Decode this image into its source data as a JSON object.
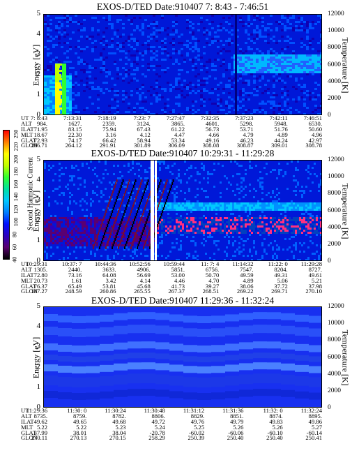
{
  "chart_data": [
    {
      "type": "heatmap",
      "title": "EXOS-D/TED   Date:910407   7: 8:43 - 7:46:51",
      "ylabel": "Energy [eV]",
      "y2label": "Temperature [K]",
      "ylim": [
        0,
        5
      ],
      "y2lim": [
        0,
        12000
      ],
      "yticks": [
        "0",
        "1",
        "2",
        "3",
        "4",
        "5"
      ],
      "y2ticks": [
        "0",
        "2000",
        "4000",
        "6000",
        "8000",
        "10000",
        "12000"
      ],
      "table": {
        "labels": [
          "UT",
          "ALT",
          "ILAT",
          "MLT",
          "GLAT",
          "GLON"
        ],
        "columns": [
          [
            "7: 8:43",
            "984.",
            "71.95",
            "18.67",
            "72.93",
            "206.71"
          ],
          [
            "7:13:31",
            "1627.",
            "83.15",
            "22.30",
            "74.17",
            "264.12"
          ],
          [
            "7:18:19",
            "2359.",
            "75.94",
            "3.16",
            "66.42",
            "291.91"
          ],
          [
            "7:23: 7",
            "3124.",
            "67.43",
            "4.12",
            "58.94",
            "301.89"
          ],
          [
            "7:27:47",
            "3865.",
            "61.22",
            "4.47",
            "53.34",
            "306.09"
          ],
          [
            "7:32:35",
            "4601.",
            "56.73",
            "4.66",
            "49.16",
            "308.08"
          ],
          [
            "7:37:23",
            "5298.",
            "53.71",
            "4.79",
            "46.23",
            "308.87"
          ],
          [
            "7:42:11",
            "5948.",
            "51.76",
            "4.89",
            "44.24",
            "309.01"
          ],
          [
            "7:46:51",
            "6530.",
            "50.60",
            "4.96",
            "42.97",
            "308.78"
          ]
        ]
      }
    },
    {
      "type": "heatmap",
      "title": "EXOS-D/TED   Date:910407   10:29:31 - 11:29:28",
      "ylabel": "Energy [eV]",
      "y2label": "Temperature [K]",
      "ylim": [
        0,
        5
      ],
      "y2lim": [
        0,
        12000
      ],
      "yticks": [
        "0",
        "1",
        "2",
        "3",
        "4",
        "5"
      ],
      "y2ticks": [
        "0",
        "2000",
        "4000",
        "6000",
        "8000",
        "10000",
        "12000"
      ],
      "table": {
        "labels": [
          "UT",
          "ALT",
          "ILAT",
          "MLT",
          "GLAT",
          "GLON"
        ],
        "columns": [
          [
            "10:29:31",
            "1305.",
            "72.80",
            "20.73",
            "76.37",
            "187.27"
          ],
          [
            "10:37: 7",
            "2440.",
            "73.16",
            "1.61",
            "65.49",
            "248.59"
          ],
          [
            "10:44:36",
            "3633.",
            "64.08",
            "3.42",
            "53.81",
            "260.86"
          ],
          [
            "10:52:56",
            "4906.",
            "56.69",
            "4.14",
            "45.68",
            "265.55"
          ],
          [
            "10:59:44",
            "5851.",
            "53.00",
            "4.46",
            "41.73",
            "267.37"
          ],
          [
            "11: 7: 4",
            "6756.",
            "50.70",
            "4.70",
            "39.27",
            "268.51"
          ],
          [
            "11:14:32",
            "7547.",
            "49.59",
            "4.89",
            "38.06",
            "269.22"
          ],
          [
            "11:22: 0",
            "8204.",
            "49.31",
            "5.06",
            "37.72",
            "269.71"
          ],
          [
            "11:29:28",
            "8727.",
            "49.61",
            "5.21",
            "37.98",
            "270.10"
          ]
        ]
      }
    },
    {
      "type": "heatmap",
      "title": "EXOS-D/TED   Date:910407   11:29:36 - 11:32:24",
      "ylabel": "Energy [eV]",
      "y2label": "Temperature [K]",
      "ylim": [
        0,
        5
      ],
      "y2lim": [
        0,
        12000
      ],
      "yticks": [
        "0",
        "1",
        "2",
        "3",
        "4",
        "5"
      ],
      "y2ticks": [
        "0",
        "2000",
        "4000",
        "6000",
        "8000",
        "10000",
        "12000"
      ],
      "table": {
        "labels": [
          "UT",
          "ALT",
          "ILAT",
          "MLT",
          "GLAT",
          "GLON"
        ],
        "columns": [
          [
            "11:29:36",
            "8735.",
            "49.62",
            "5.22",
            "37.99",
            "270.11"
          ],
          [
            "11:30: 0",
            "8759.",
            "49.65",
            "5.22",
            "38.01",
            "270.13"
          ],
          [
            "11:30:24",
            "8782.",
            "49.68",
            "5.23",
            "38.04",
            "270.15"
          ],
          [
            "11:30:48",
            "8806.",
            "49.72",
            "5.24",
            "-20.78",
            "258.29"
          ],
          [
            "11:31:12",
            "8829.",
            "49.76",
            "5.25",
            "-60.02",
            "250.39"
          ],
          [
            "11:31:36",
            "8851.",
            "49.79",
            "5.26",
            "-60.06",
            "250.40"
          ],
          [
            "11:32: 0",
            "8874.",
            "49.83",
            "5.26",
            "-60.10",
            "250.40"
          ],
          [
            "11:32:24",
            "8895.",
            "49.86",
            "5.27",
            "-60.14",
            "250.41"
          ]
        ]
      }
    }
  ],
  "colorbar": {
    "title": "Second Harmonic Current",
    "ticks": [
      "250",
      "220",
      "200",
      "180",
      "160",
      "140",
      "120",
      "100",
      "80",
      "60",
      "40"
    ],
    "colors": [
      "#000000",
      "#5a0070",
      "#2a00c0",
      "#0010ff",
      "#0080ff",
      "#00c8ff",
      "#00e0a0",
      "#30ff30",
      "#c0ff00",
      "#ffff00",
      "#ff8000",
      "#ff0000"
    ]
  }
}
